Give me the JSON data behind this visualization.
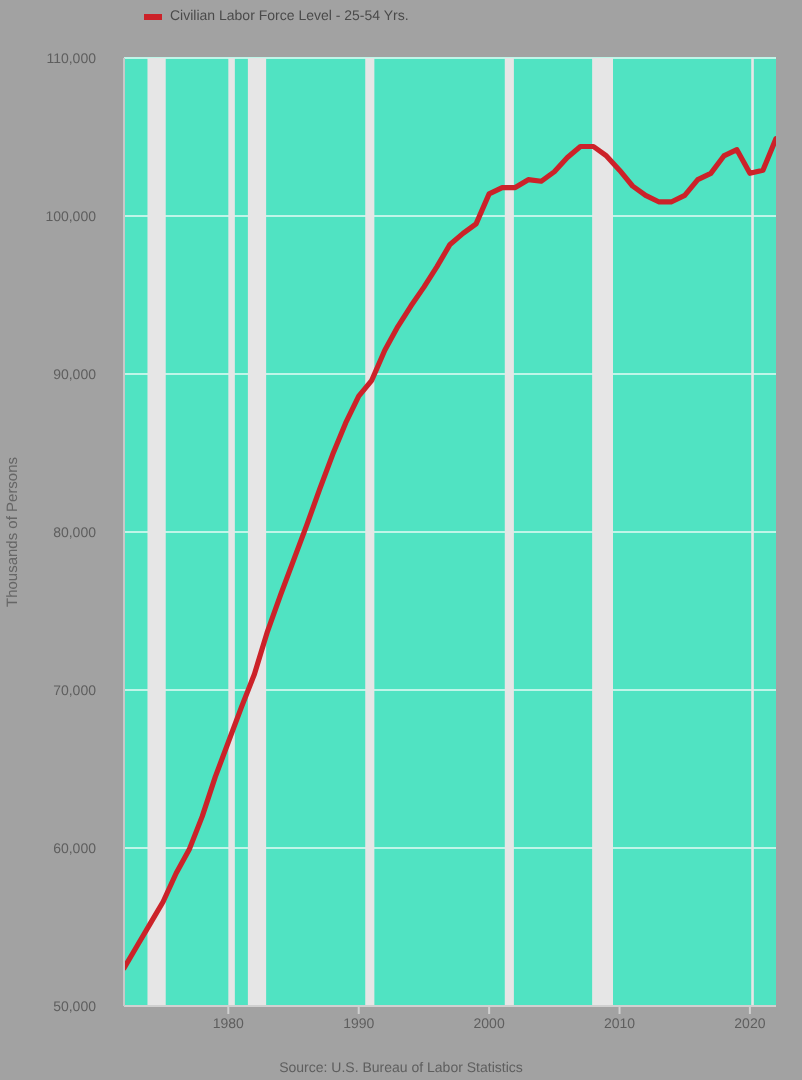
{
  "chart_data": {
    "type": "line",
    "ylabel": "Thousands of Persons",
    "annotations": [
      "Source: U.S. Bureau of Labor Statistics"
    ],
    "x": [
      1972,
      1973,
      1974,
      1975,
      1976,
      1977,
      1978,
      1979,
      1980,
      1981,
      1982,
      1983,
      1984,
      1985,
      1986,
      1987,
      1988,
      1989,
      1990,
      1991,
      1992,
      1993,
      1994,
      1995,
      1996,
      1997,
      1998,
      1999,
      2000,
      2001,
      2002,
      2003,
      2004,
      2005,
      2006,
      2007,
      2008,
      2009,
      2010,
      2011,
      2012,
      2013,
      2014,
      2015,
      2016,
      2017,
      2018,
      2019,
      2020,
      2021,
      2022
    ],
    "series": [
      {
        "name": "Civilian Labor Force Level - 25-54 Yrs.",
        "color": "#cc2229",
        "values": [
          52400,
          53800,
          55200,
          56600,
          58400,
          59900,
          62000,
          64500,
          66700,
          68900,
          71000,
          73700,
          76000,
          78200,
          80400,
          82700,
          84900,
          86900,
          88600,
          89600,
          91500,
          93000,
          94300,
          95500,
          96800,
          98200,
          98900,
          99500,
          101400,
          101800,
          101800,
          102300,
          102200,
          102800,
          103700,
          104400,
          104400,
          103800,
          102900,
          101900,
          101300,
          100900,
          100900,
          101300,
          102300,
          102700,
          103800,
          104200,
          102700,
          102900,
          104900
        ]
      }
    ],
    "xlim": [
      1972,
      2022
    ],
    "xticks": [
      1980,
      1990,
      2000,
      2010,
      2020
    ],
    "ylim": [
      50000,
      110000
    ],
    "yticks": [
      {
        "value": 50000,
        "label": "50,000"
      },
      {
        "value": 60000,
        "label": "60,000"
      },
      {
        "value": 70000,
        "label": "70,000"
      },
      {
        "value": 80000,
        "label": "80,000"
      },
      {
        "value": 90000,
        "label": "90,000"
      },
      {
        "value": 100000,
        "label": "100,000"
      },
      {
        "value": 110000,
        "label": "110,000"
      }
    ],
    "bands": [
      {
        "axis": "x",
        "from": 1973.8,
        "to": 1975.2,
        "color": "#e6e6e6"
      },
      {
        "axis": "x",
        "from": 1980.0,
        "to": 1980.5,
        "color": "#e6e6e6"
      },
      {
        "axis": "x",
        "from": 1981.5,
        "to": 1982.9,
        "color": "#e6e6e6"
      },
      {
        "axis": "x",
        "from": 1990.5,
        "to": 1991.2,
        "color": "#e6e6e6"
      },
      {
        "axis": "x",
        "from": 2001.2,
        "to": 2001.9,
        "color": "#e6e6e6"
      },
      {
        "axis": "x",
        "from": 2007.9,
        "to": 2009.5,
        "color": "#e6e6e6"
      },
      {
        "axis": "x",
        "from": 2020.1,
        "to": 2020.3,
        "color": "#e6e6e6"
      }
    ],
    "grid": "y",
    "legend": "top left"
  }
}
